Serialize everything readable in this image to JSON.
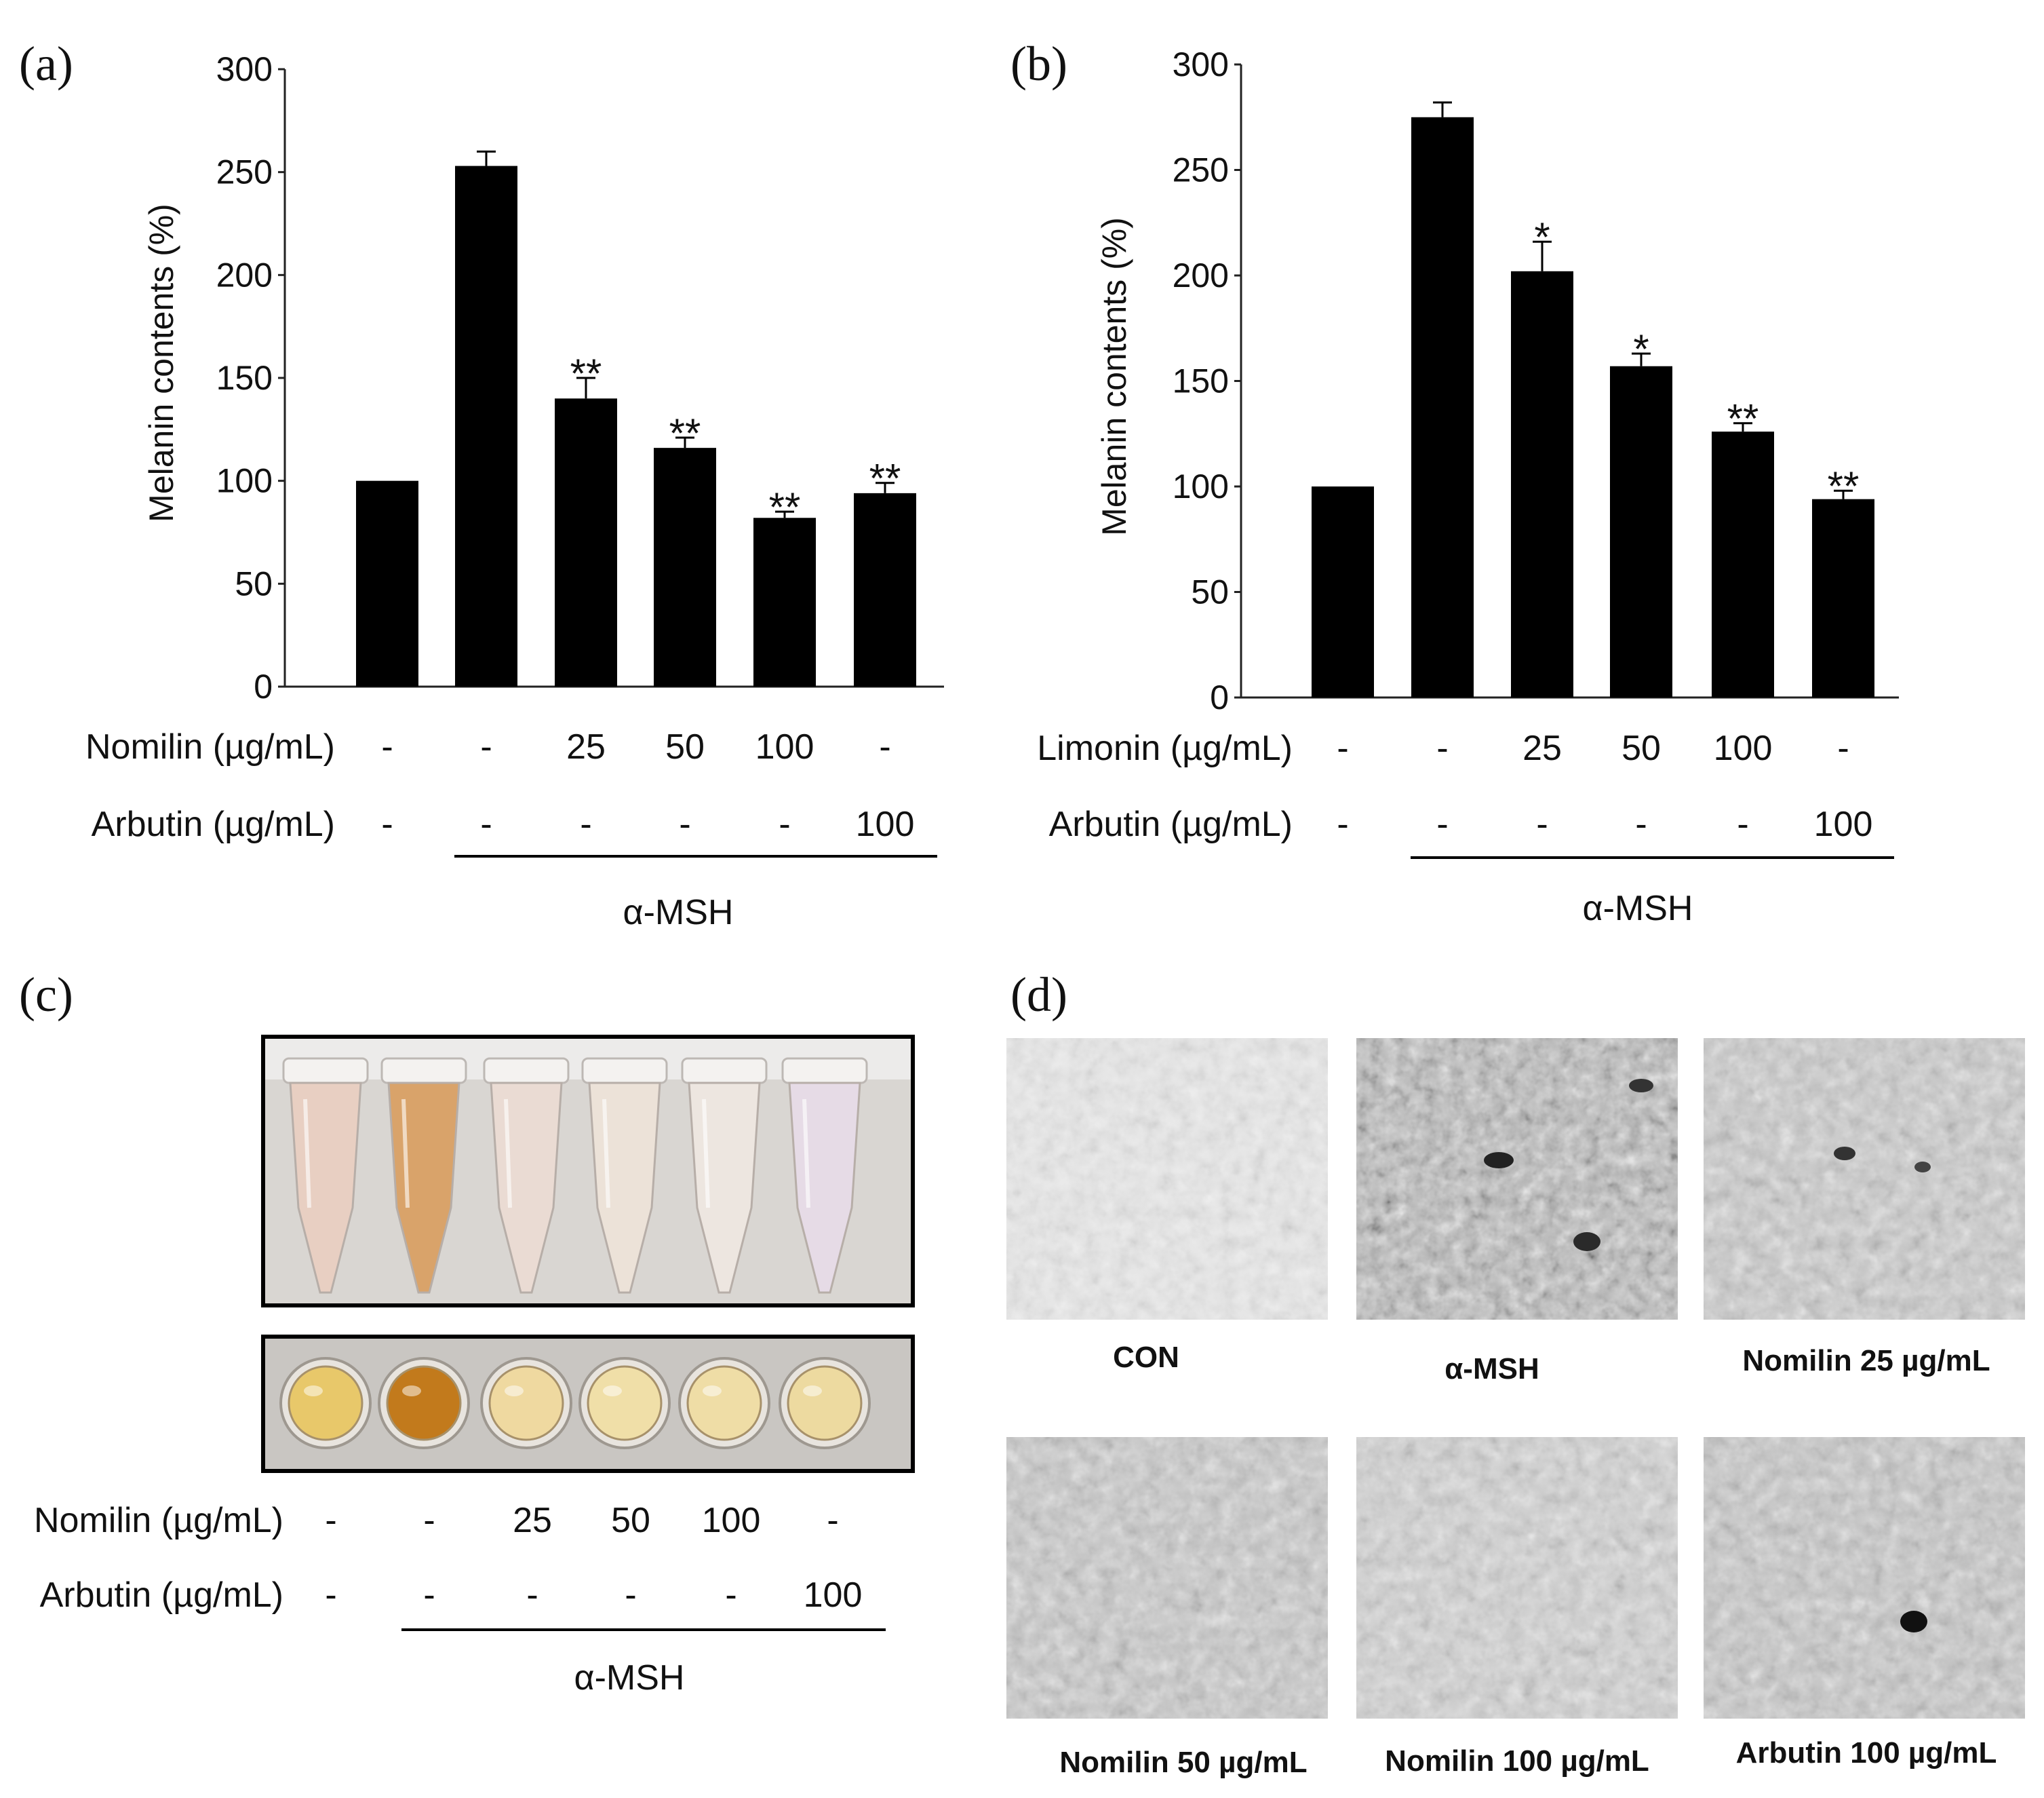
{
  "panels": {
    "a": "(a)",
    "b": "(b)",
    "c": "(c)",
    "d": "(d)"
  },
  "chart_data": [
    {
      "type": "bar",
      "panel": "a",
      "ylabel": "Melanin contents (%)",
      "ylim": [
        0,
        300
      ],
      "yticks": [
        0,
        50,
        100,
        150,
        200,
        250,
        300
      ],
      "values": [
        100,
        253,
        140,
        116,
        82,
        94
      ],
      "errors": [
        0,
        7,
        10,
        5,
        3,
        5
      ],
      "significance": [
        "",
        "",
        "**",
        "**",
        "**",
        "**"
      ],
      "rows": [
        {
          "label": "Nomilin (µg/mL)",
          "values": [
            "-",
            "-",
            "25",
            "50",
            "100",
            "-"
          ]
        },
        {
          "label": "Arbutin (µg/mL)",
          "values": [
            "-",
            "-",
            "-",
            "-",
            "-",
            "100"
          ]
        }
      ],
      "group_label": "α-MSH"
    },
    {
      "type": "bar",
      "panel": "b",
      "ylabel": "Melanin contents (%)",
      "ylim": [
        0,
        300
      ],
      "yticks": [
        0,
        50,
        100,
        150,
        200,
        250,
        300
      ],
      "values": [
        100,
        275,
        202,
        157,
        126,
        94
      ],
      "errors": [
        0,
        7,
        14,
        6,
        4,
        4
      ],
      "significance": [
        "",
        "",
        "*",
        "*",
        "**",
        "**"
      ],
      "rows": [
        {
          "label": "Limonin (µg/mL)",
          "values": [
            "-",
            "-",
            "25",
            "50",
            "100",
            "-"
          ]
        },
        {
          "label": "Arbutin (µg/mL)",
          "values": [
            "-",
            "-",
            "-",
            "-",
            "-",
            "100"
          ]
        }
      ],
      "group_label": "α-MSH"
    }
  ],
  "panel_c": {
    "rows": [
      {
        "label": "Nomilin (µg/mL)",
        "values": [
          "-",
          "-",
          "25",
          "50",
          "100",
          "-"
        ]
      },
      {
        "label": "Arbutin (µg/mL)",
        "values": [
          "-",
          "-",
          "-",
          "-",
          "-",
          "100"
        ]
      }
    ],
    "group_label": "α-MSH",
    "tube_colors": [
      "#e8cfc2",
      "#d9a36a",
      "#eadbd3",
      "#ece2d8",
      "#ede6e0",
      "#e6dbe6"
    ],
    "well_colors": [
      "#e8c86a",
      "#c27a1c",
      "#efd9a0",
      "#f0dfa8",
      "#efdda6",
      "#eddaa0"
    ]
  },
  "panel_d": {
    "captions": [
      "CON",
      "α-MSH",
      "Nomilin 25 µg/mL",
      "Nomilin 50 µg/mL",
      "Nomilin 100 µg/mL",
      "Arbutin 100 µg/mL"
    ]
  }
}
